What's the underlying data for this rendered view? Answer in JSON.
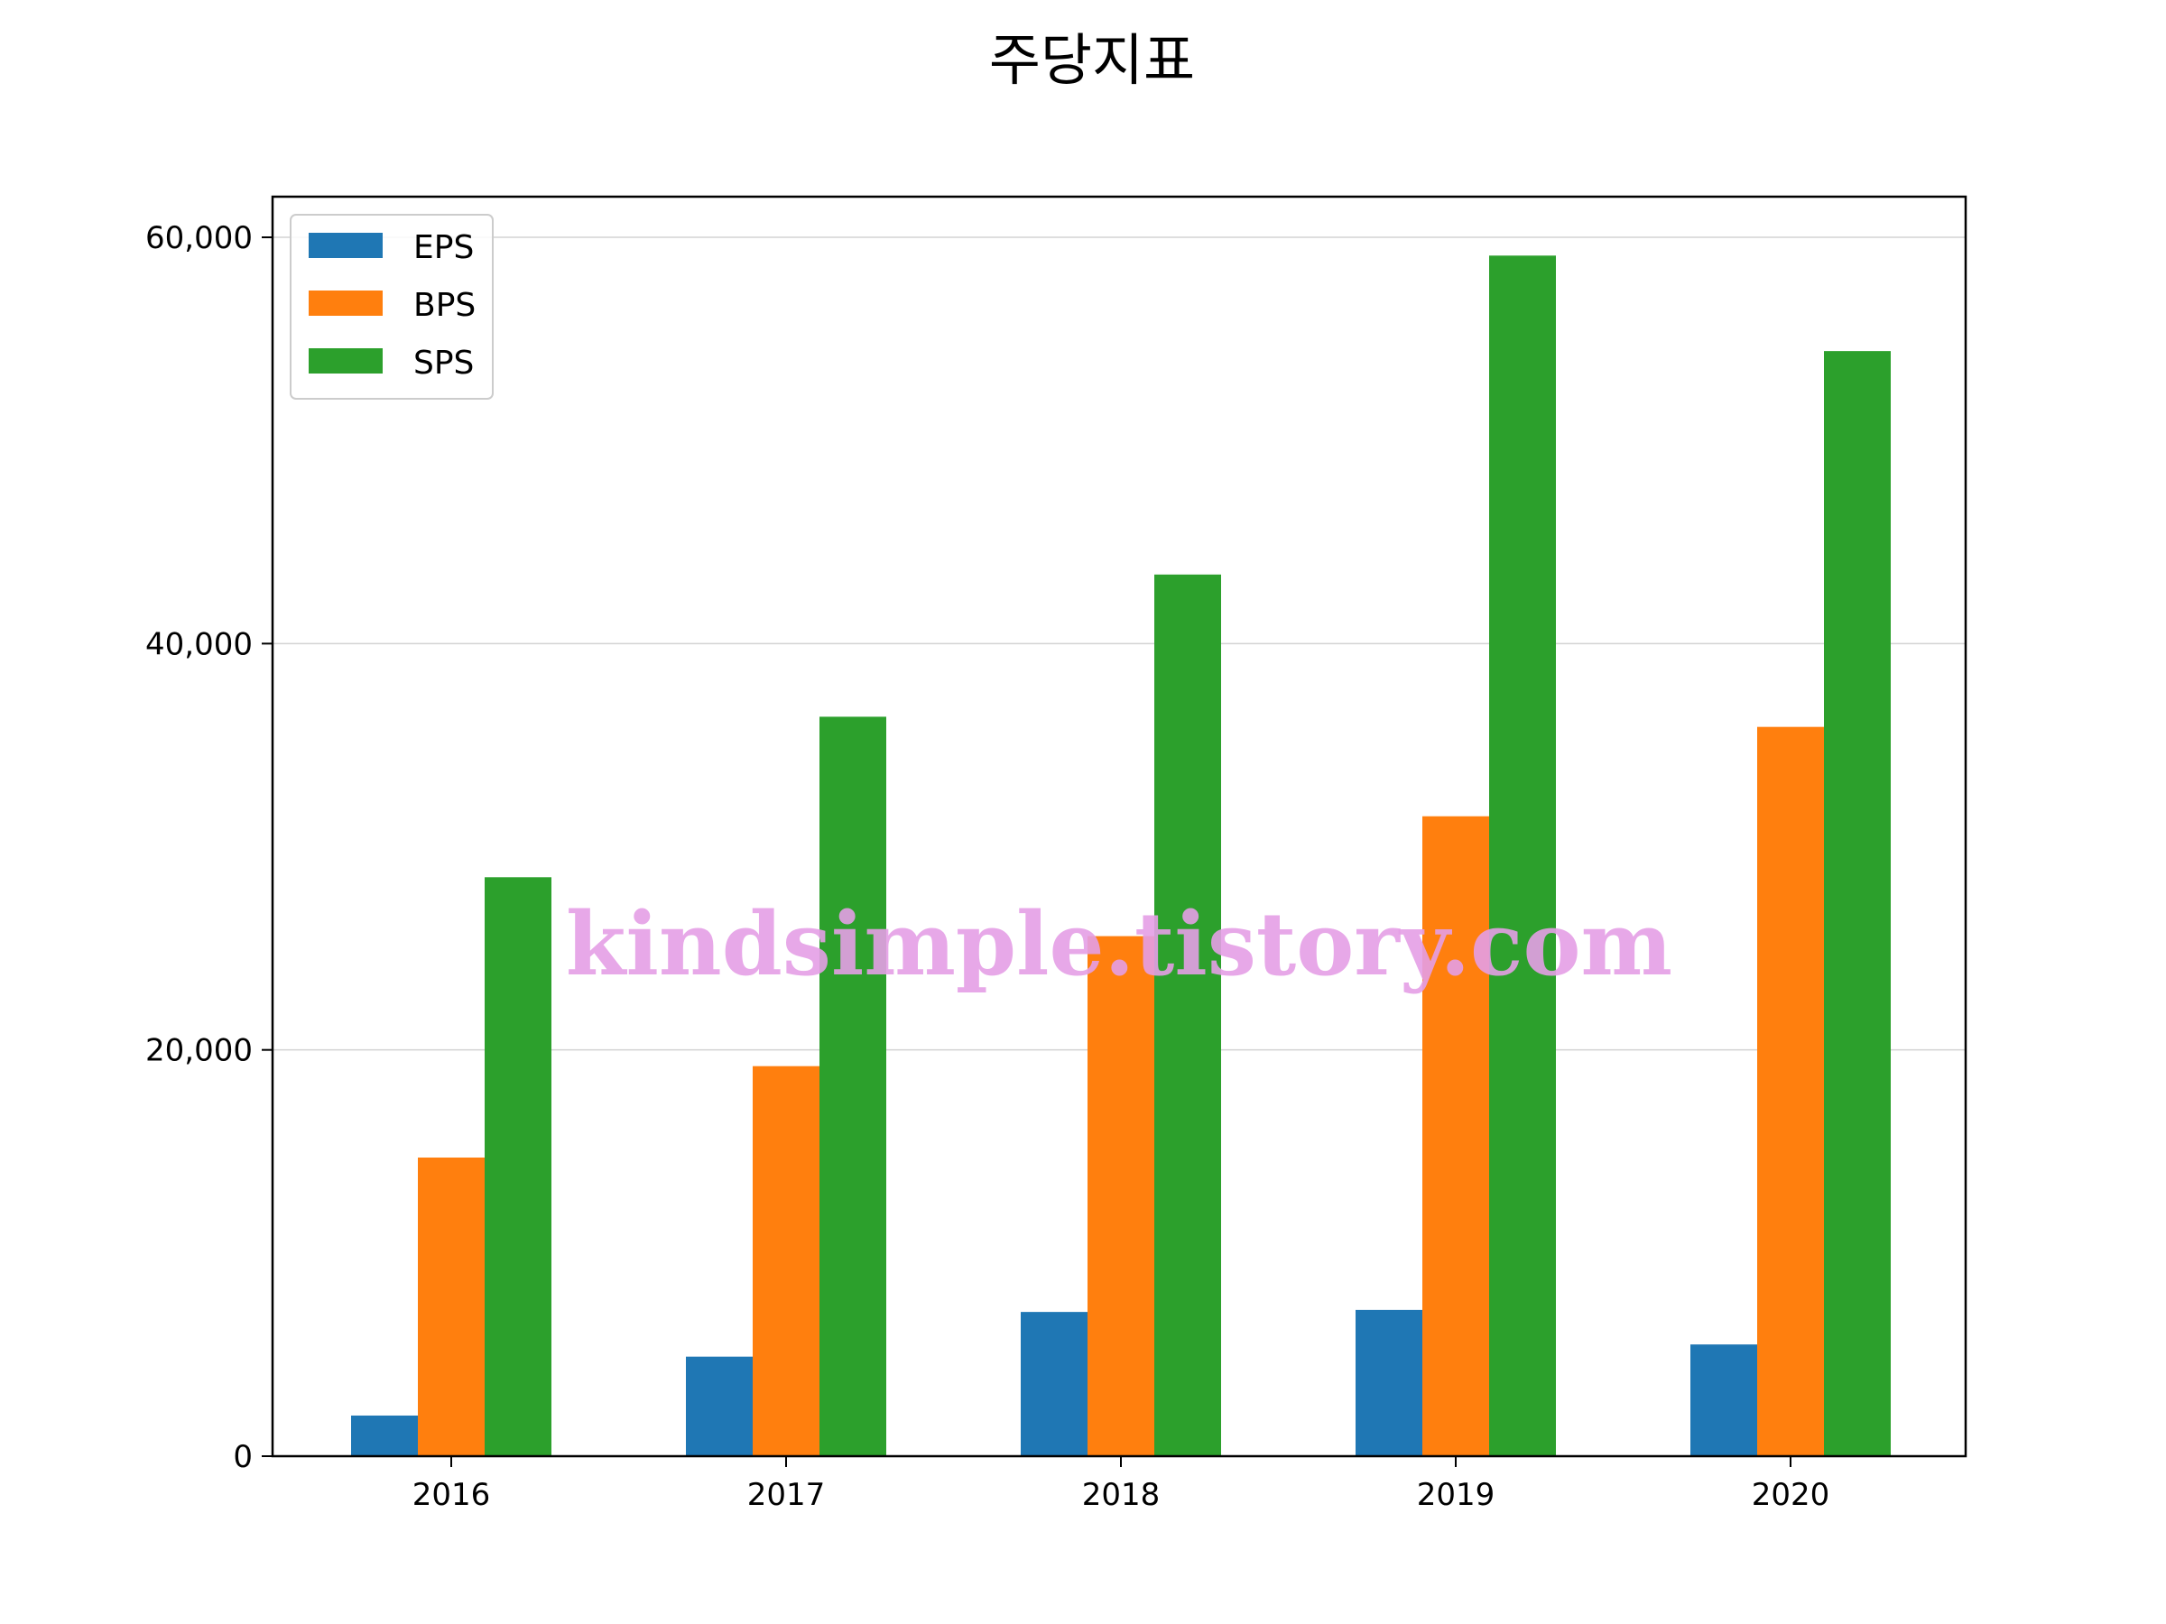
{
  "chart_data": {
    "type": "bar",
    "title": "주당지표",
    "xlabel": "",
    "ylabel": "",
    "categories": [
      "2016",
      "2017",
      "2018",
      "2019",
      "2020"
    ],
    "series": [
      {
        "name": "EPS",
        "color": "#1f77b4",
        "values": [
          2000,
          4900,
          7100,
          7200,
          5500
        ]
      },
      {
        "name": "BPS",
        "color": "#ff7f0e",
        "values": [
          14700,
          19200,
          25600,
          31500,
          35900
        ]
      },
      {
        "name": "SPS",
        "color": "#2ca02c",
        "values": [
          28500,
          36400,
          43400,
          59100,
          54400
        ]
      }
    ],
    "ylim": [
      0,
      62000
    ],
    "yticks": [
      0,
      20000,
      40000,
      60000
    ],
    "ytick_labels": [
      "0",
      "20,000",
      "40,000",
      "60,000"
    ],
    "grid": "y",
    "legend": "top-left"
  },
  "watermark": "kindsimple.tistory.com"
}
